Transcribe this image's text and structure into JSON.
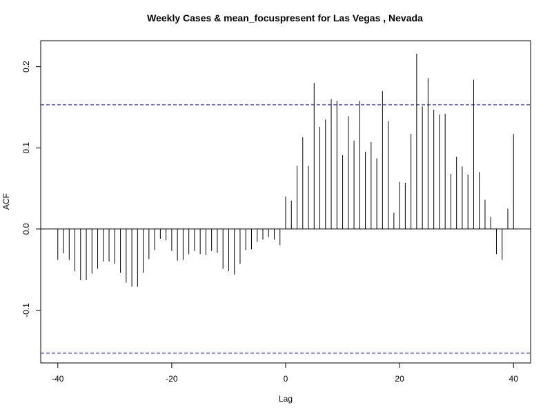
{
  "chart_data": {
    "type": "bar",
    "subtype": "acf-stem",
    "title": "Weekly Cases & mean_focuspresent for Las Vegas , Nevada",
    "xlabel": "Lag",
    "ylabel": "ACF",
    "xlim": [
      -43,
      43
    ],
    "ylim": [
      -0.165,
      0.232
    ],
    "x_ticks": [
      -40,
      -20,
      0,
      20,
      40
    ],
    "x_tick_labels": [
      "-40",
      "-20",
      "0",
      "20",
      "40"
    ],
    "y_ticks": [
      -0.1,
      0.0,
      0.1,
      0.2
    ],
    "y_tick_labels": [
      "-0.1",
      "0.0",
      "0.1",
      "0.2"
    ],
    "confidence_bounds": [
      0.153,
      -0.153
    ],
    "bound_color": "#0000ff",
    "bar_color": "#000000",
    "grid": false,
    "lags": [
      -40,
      -39,
      -38,
      -37,
      -36,
      -35,
      -34,
      -33,
      -32,
      -31,
      -30,
      -29,
      -28,
      -27,
      -26,
      -25,
      -24,
      -23,
      -22,
      -21,
      -20,
      -19,
      -18,
      -17,
      -16,
      -15,
      -14,
      -13,
      -12,
      -11,
      -10,
      -9,
      -8,
      -7,
      -6,
      -5,
      -4,
      -3,
      -2,
      -1,
      0,
      1,
      2,
      3,
      4,
      5,
      6,
      7,
      8,
      9,
      10,
      11,
      12,
      13,
      14,
      15,
      16,
      17,
      18,
      19,
      20,
      21,
      22,
      23,
      24,
      25,
      26,
      27,
      28,
      29,
      30,
      31,
      32,
      33,
      34,
      35,
      36,
      37,
      38,
      39,
      40
    ],
    "values": [
      -0.038,
      -0.03,
      -0.038,
      -0.052,
      -0.063,
      -0.063,
      -0.055,
      -0.049,
      -0.04,
      -0.04,
      -0.043,
      -0.054,
      -0.066,
      -0.071,
      -0.071,
      -0.054,
      -0.037,
      -0.026,
      -0.012,
      -0.014,
      -0.027,
      -0.039,
      -0.038,
      -0.031,
      -0.027,
      -0.031,
      -0.032,
      -0.027,
      -0.029,
      -0.049,
      -0.052,
      -0.056,
      -0.043,
      -0.026,
      -0.025,
      -0.016,
      -0.013,
      -0.01,
      -0.013,
      -0.02,
      0.04,
      0.035,
      0.078,
      0.113,
      0.078,
      0.18,
      0.126,
      0.135,
      0.16,
      0.158,
      0.091,
      0.139,
      0.109,
      0.158,
      0.095,
      0.107,
      0.087,
      0.17,
      0.133,
      0.02,
      0.058,
      0.057,
      0.117,
      0.216,
      0.151,
      0.186,
      0.147,
      0.141,
      0.142,
      0.068,
      0.089,
      0.077,
      0.067,
      0.184,
      0.07,
      0.036,
      0.015,
      -0.031,
      -0.038,
      0.025,
      0.117
    ]
  }
}
